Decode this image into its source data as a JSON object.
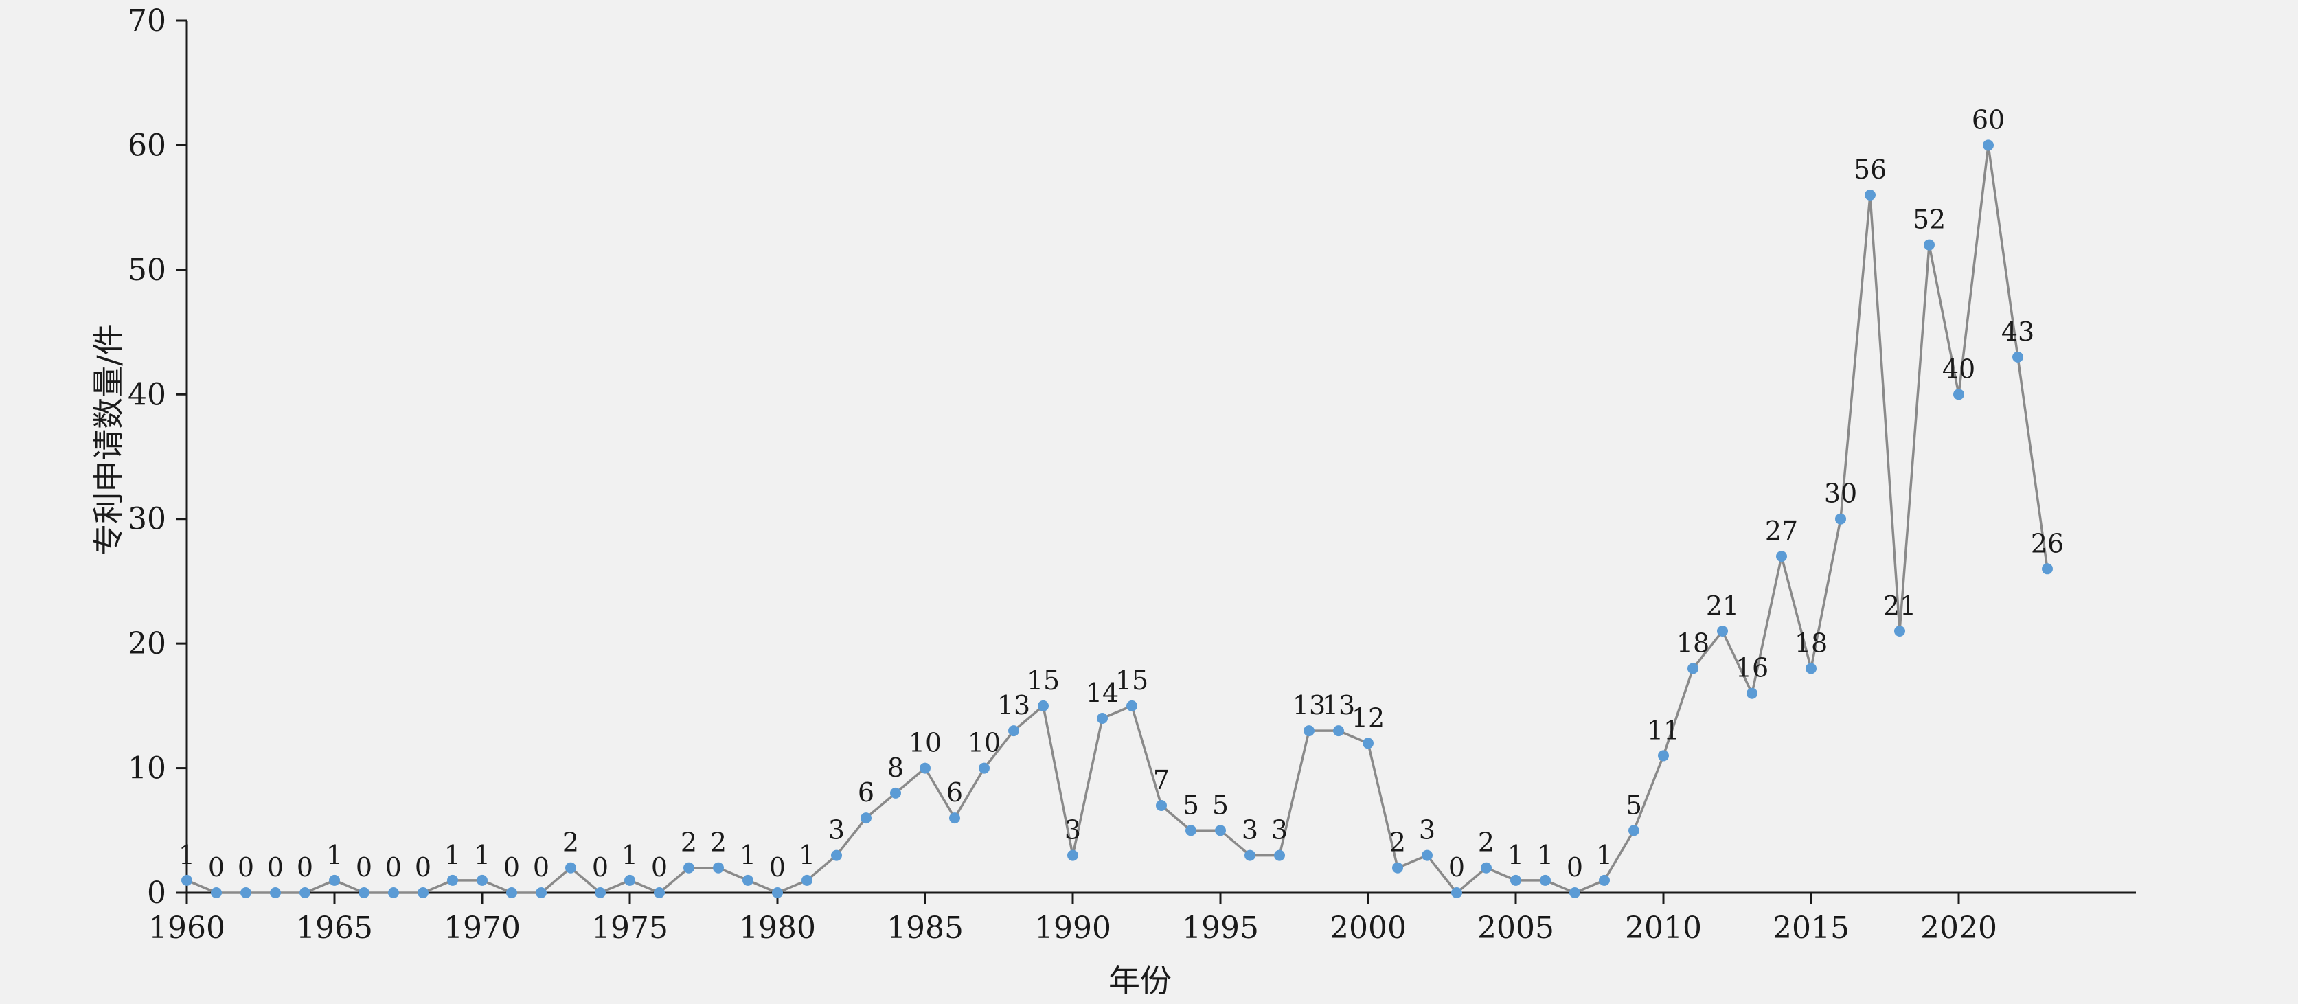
{
  "chart_data": {
    "type": "line",
    "title": "",
    "xlabel": "年份",
    "ylabel": "专利申请数量/件",
    "x": [
      1960,
      1961,
      1962,
      1963,
      1964,
      1965,
      1966,
      1967,
      1968,
      1969,
      1970,
      1971,
      1972,
      1973,
      1974,
      1975,
      1976,
      1977,
      1978,
      1979,
      1980,
      1981,
      1982,
      1983,
      1984,
      1985,
      1986,
      1987,
      1988,
      1989,
      1990,
      1991,
      1992,
      1993,
      1994,
      1995,
      1996,
      1997,
      1998,
      1999,
      2000,
      2001,
      2002,
      2003,
      2004,
      2005,
      2006,
      2007,
      2008,
      2009,
      2010,
      2011,
      2012,
      2013,
      2014,
      2015,
      2016,
      2017,
      2018,
      2019,
      2020,
      2021,
      2022,
      2023
    ],
    "values": [
      1,
      0,
      0,
      0,
      0,
      1,
      0,
      0,
      0,
      1,
      1,
      0,
      0,
      2,
      0,
      1,
      0,
      2,
      2,
      1,
      0,
      1,
      3,
      6,
      8,
      10,
      6,
      10,
      13,
      15,
      3,
      14,
      15,
      7,
      5,
      5,
      3,
      3,
      13,
      13,
      12,
      2,
      3,
      0,
      2,
      1,
      1,
      0,
      1,
      5,
      11,
      18,
      21,
      16,
      27,
      18,
      30,
      56,
      21,
      52,
      40,
      60,
      43,
      26
    ],
    "point_labels_visible": true,
    "xlim": [
      1960,
      2026
    ],
    "ylim": [
      0,
      70
    ],
    "xticks": [
      1960,
      1965,
      1970,
      1975,
      1980,
      1985,
      1990,
      1995,
      2000,
      2005,
      2010,
      2015,
      2020
    ],
    "yticks": [
      0,
      10,
      20,
      30,
      40,
      50,
      60,
      70
    ],
    "grid": false,
    "legend_position": "none",
    "colors": {
      "background": "#f1f1f1",
      "line": "#8a8a8a",
      "marker": "#5b9bd5",
      "axis": "#1a1a1a",
      "text": "#1a1a1a"
    }
  }
}
